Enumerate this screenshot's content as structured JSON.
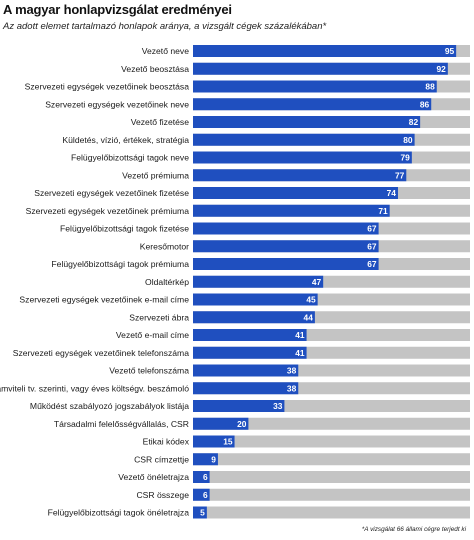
{
  "chart_data": {
    "type": "bar",
    "orientation": "horizontal",
    "title": "A magyar honlapvizsgálat eredményei",
    "subtitle": "Az adott elemet tartalmazó honlapok aránya, a vizsgált cégek százalékában*",
    "footnote": "*A vizsgálat 66 állami cégre terjedt ki",
    "xlim": [
      0,
      100
    ],
    "grid": false,
    "legend": "none",
    "colors": {
      "bar": "#1f4fbf",
      "track": "#c4c4c4"
    },
    "categories": [
      "Vezető neve",
      "Vezető beosztása",
      "Szervezeti egységek vezetőinek beosztása",
      "Szervezeti egységek vezetőinek neve",
      "Vezető fizetése",
      "Küldetés, vízió, értékek, stratégia",
      "Felügyelőbizottsági tagok neve",
      "Vezető prémiuma",
      "Szervezeti egységek vezetőinek fizetése",
      "Szervezeti egységek vezetőinek prémiuma",
      "Felügyelőbizottsági tagok fizetése",
      "Keresőmotor",
      "Felügyelőbizottsági tagok prémiuma",
      "Oldaltérkép",
      "Szervezeti egységek vezetőinek e-mail címe",
      "Szervezeti ábra",
      "Vezető e-mail címe",
      "Szervezeti egységek vezetőinek telefonszáma",
      "Vezető telefonszáma",
      "Számviteli tv. szerinti, vagy éves költségv. beszámoló",
      "Működést szabályozó jogszabályok listája",
      "Társadalmi felelősségvállalás, CSR",
      "Etikai kódex",
      "CSR címzettje",
      "Vezető önéletrajza",
      "CSR összege",
      "Felügyelőbizottsági tagok önéletrajza"
    ],
    "values": [
      95,
      92,
      88,
      86,
      82,
      80,
      79,
      77,
      74,
      71,
      67,
      67,
      67,
      47,
      45,
      44,
      41,
      41,
      38,
      38,
      33,
      20,
      15,
      9,
      6,
      6,
      5
    ]
  }
}
